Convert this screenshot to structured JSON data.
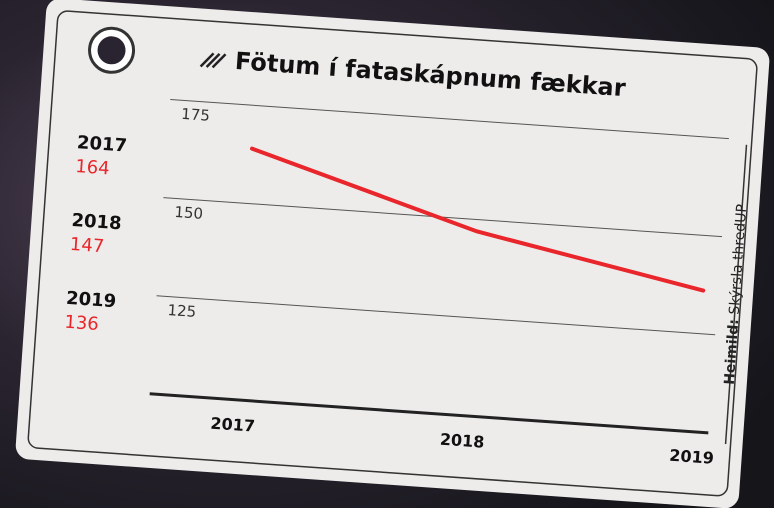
{
  "chart_data": {
    "type": "line",
    "title": "Fötum í fataskápnum fækkar",
    "categories": [
      "2017",
      "2018",
      "2019"
    ],
    "values": [
      164,
      147,
      136
    ],
    "color": "#e8262b",
    "ylim": [
      100,
      175
    ],
    "yticks": [
      125,
      150,
      175
    ],
    "grid": true,
    "source_label": "Heimild:",
    "source": "Skýrsla thredUP"
  }
}
